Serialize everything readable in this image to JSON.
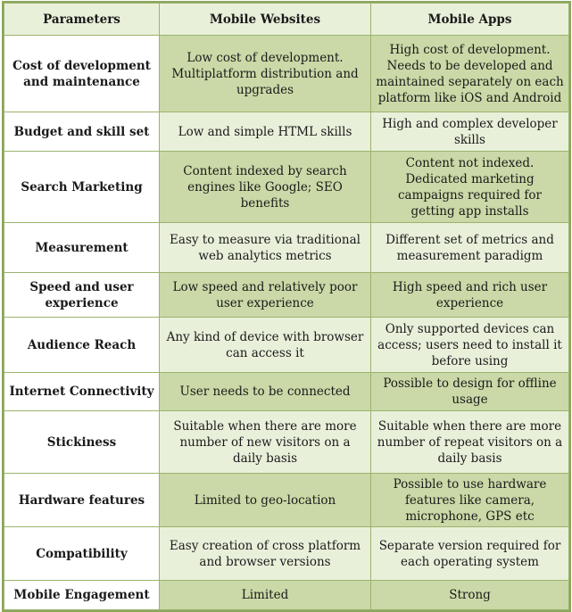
{
  "header": {
    "parameters": "Parameters",
    "web": "Mobile Websites",
    "app": "Mobile  Apps"
  },
  "rows": [
    {
      "param": "Cost of development and maintenance",
      "web": "Low cost of development. Multiplatform distribution and upgrades",
      "app": "High cost of development. Needs to be developed and maintained separately on each platform like iOS and Android"
    },
    {
      "param": "Budget and skill set",
      "web": "Low and simple HTML skills",
      "app": "High and complex developer skills"
    },
    {
      "param": "Search Marketing",
      "web": "Content indexed by search engines like Google; SEO benefits",
      "app": "Content not indexed. Dedicated marketing campaigns required for getting app installs"
    },
    {
      "param": "Measurement",
      "web": "Easy to measure via traditional web analytics metrics",
      "app": "Different set of metrics and measurement paradigm"
    },
    {
      "param": "Speed and user experience",
      "web": "Low speed and relatively poor user experience",
      "app": "High speed and rich user experience"
    },
    {
      "param": "Audience Reach",
      "web": "Any kind of device with browser can access it",
      "app": "Only supported devices can access; users need to install it before using"
    },
    {
      "param": "Internet Connectivity",
      "web": "User needs to be connected",
      "app": "Possible to design for offline usage"
    },
    {
      "param": "Stickiness",
      "web": "Suitable when there are more number of new visitors on a daily basis",
      "app": "Suitable when there are more number of repeat visitors on a daily basis"
    },
    {
      "param": "Hardware features",
      "web": "Limited to geo-location",
      "app": "Possible to use hardware features like camera, microphone, GPS etc"
    },
    {
      "param": "Compatibility",
      "web": "Easy creation of cross platform and browser versions",
      "app": "Separate version required for each operating system"
    },
    {
      "param": "Mobile Engagement",
      "web": "Limited",
      "app": "Strong"
    }
  ],
  "colors": {
    "header_bg": "#e9f0da",
    "row_dark": "#cad9a7",
    "row_light": "#e9f0da",
    "grid": "#9bb36d"
  }
}
